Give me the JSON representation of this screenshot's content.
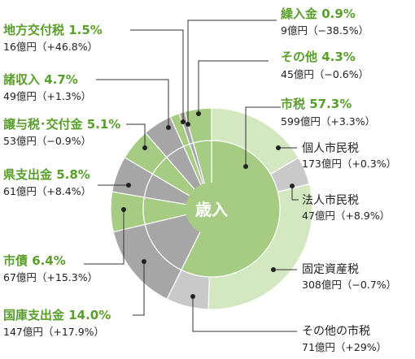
{
  "chart_data": {
    "type": "pie",
    "title": "",
    "center_label": "歳入",
    "total_percent": 100,
    "inner_ring": {
      "categories": [
        "市税",
        "国庫支出金",
        "市債",
        "県支出金",
        "譲与税･交付金",
        "諸収入",
        "地方交付税",
        "繰入金",
        "その他"
      ],
      "values": [
        57.3,
        14.0,
        6.4,
        5.8,
        5.1,
        4.7,
        1.5,
        0.9,
        4.3
      ]
    },
    "outer_ring": {
      "parent": "市税",
      "categories": [
        "個人市民税",
        "法人市民税",
        "固定資産税",
        "その他の市税"
      ],
      "values": [
        173,
        47,
        308,
        71
      ]
    },
    "colors": {
      "green_dark": "#a5cc82",
      "green_light": "#d3e8c0",
      "gray_dark": "#a6a6a6",
      "gray_light": "#c9c9c9",
      "accent": "#5a9e2c"
    },
    "labels": {
      "shizei": {
        "title": "市税 57.3%",
        "detail": "599億円（+3.3%）"
      },
      "kojin": {
        "title": "個人市民税",
        "detail": "173億円（+0.3%）"
      },
      "hojin": {
        "title": "法人市民税",
        "detail": "47億円（+8.9%）"
      },
      "kotei": {
        "title": "固定資産税",
        "detail": "308億円（−0.7%）"
      },
      "sonotashi": {
        "title": "その他の市税",
        "detail": "71億円（+29%）"
      },
      "kokko": {
        "title": "国庫支出金 14.0%",
        "detail": "147億円（+17.9%）"
      },
      "shisai": {
        "title": "市債 6.4%",
        "detail": "67億円（+15.3%）"
      },
      "ken": {
        "title": "県支出金 5.8%",
        "detail": "61億円（+8.4%）"
      },
      "joyo": {
        "title": "譲与税･交付金 5.1%",
        "detail": "53億円（−0.9%）"
      },
      "shoshu": {
        "title": "諸収入 4.7%",
        "detail": "49億円（+1.3%）"
      },
      "chiho": {
        "title": "地方交付税 1.5%",
        "detail": "16億円（+46.8%）"
      },
      "kuri": {
        "title": "繰入金 0.9%",
        "detail": "9億円（−38.5%）"
      },
      "sonota": {
        "title": "その他 4.3%",
        "detail": "45億円（−0.6%）"
      }
    }
  }
}
